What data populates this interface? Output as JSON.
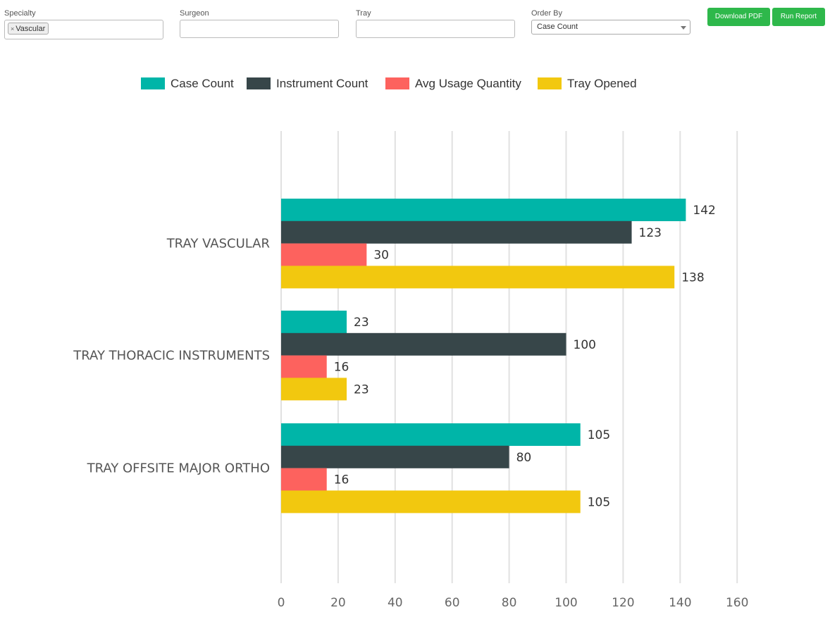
{
  "filters": {
    "specialty": {
      "label": "Specialty",
      "tag_remove": "×",
      "tag": "Vascular"
    },
    "surgeon": {
      "label": "Surgeon",
      "value": ""
    },
    "tray": {
      "label": "Tray",
      "value": ""
    },
    "order_by": {
      "label": "Order By",
      "value": "Case Count"
    }
  },
  "buttons": {
    "download": "Download PDF",
    "run": "Run Report"
  },
  "colors": {
    "case_count": "#00b5a8",
    "instrument_count": "#374649",
    "avg_usage": "#fd625e",
    "tray_opened": "#f2c80f",
    "button": "#2eb84b"
  },
  "chart_data": {
    "type": "bar",
    "orientation": "horizontal",
    "categories": [
      "TRAY VASCULAR",
      "TRAY THORACIC INSTRUMENTS",
      "TRAY OFFSITE MAJOR ORTHO"
    ],
    "series": [
      {
        "name": "Case Count",
        "color_key": "case_count",
        "values": [
          142,
          23,
          105
        ]
      },
      {
        "name": "Instrument Count",
        "color_key": "instrument_count",
        "values": [
          123,
          100,
          80
        ]
      },
      {
        "name": "Avg Usage Quantity",
        "color_key": "avg_usage",
        "values": [
          30,
          16,
          16
        ]
      },
      {
        "name": "Tray Opened",
        "color_key": "tray_opened",
        "values": [
          138,
          23,
          105
        ]
      }
    ],
    "xlim": [
      0,
      160
    ],
    "xticks": [
      0,
      20,
      40,
      60,
      80,
      100,
      120,
      140,
      160
    ],
    "grid": true,
    "legend": "top"
  }
}
